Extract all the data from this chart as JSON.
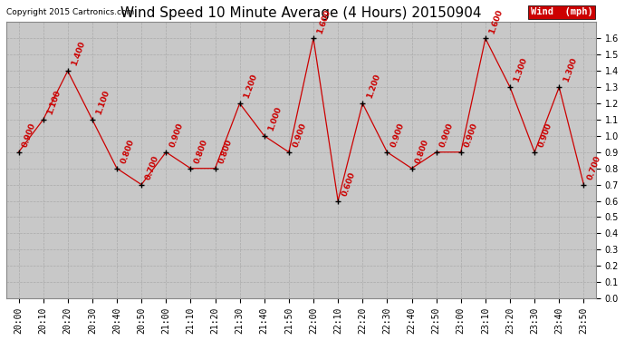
{
  "title": "Wind Speed 10 Minute Average (4 Hours) 20150904",
  "copyright": "Copyright 2015 Cartronics.com",
  "legend_label": "Wind  (mph)",
  "legend_bg": "#cc0000",
  "legend_fg": "#ffffff",
  "x_labels": [
    "20:00",
    "20:10",
    "20:20",
    "20:30",
    "20:40",
    "20:50",
    "21:00",
    "21:10",
    "21:20",
    "21:30",
    "21:40",
    "21:50",
    "22:00",
    "22:10",
    "22:20",
    "22:30",
    "22:40",
    "22:50",
    "23:00",
    "23:10",
    "23:20",
    "23:30",
    "23:40",
    "23:50"
  ],
  "y_values": [
    0.9,
    1.1,
    1.4,
    1.1,
    0.8,
    0.7,
    0.9,
    0.8,
    0.8,
    1.2,
    1.0,
    0.9,
    1.6,
    0.6,
    1.2,
    0.9,
    0.8,
    0.9,
    0.9,
    1.6,
    1.3,
    0.9,
    1.3,
    0.7
  ],
  "line_color": "#cc0000",
  "marker_color": "#000000",
  "grid_color": "#aaaaaa",
  "plot_bg_color": "#c8c8c8",
  "fig_bg_color": "#ffffff",
  "ylim": [
    0.0,
    1.7
  ],
  "yticks": [
    0.0,
    0.1,
    0.2,
    0.3,
    0.4,
    0.5,
    0.6,
    0.7,
    0.8,
    0.9,
    1.0,
    1.1,
    1.2,
    1.3,
    1.4,
    1.5,
    1.6
  ],
  "title_fontsize": 11,
  "annotation_fontsize": 6.5,
  "annotation_color": "#cc0000",
  "tick_fontsize": 7,
  "copyright_fontsize": 6.5
}
